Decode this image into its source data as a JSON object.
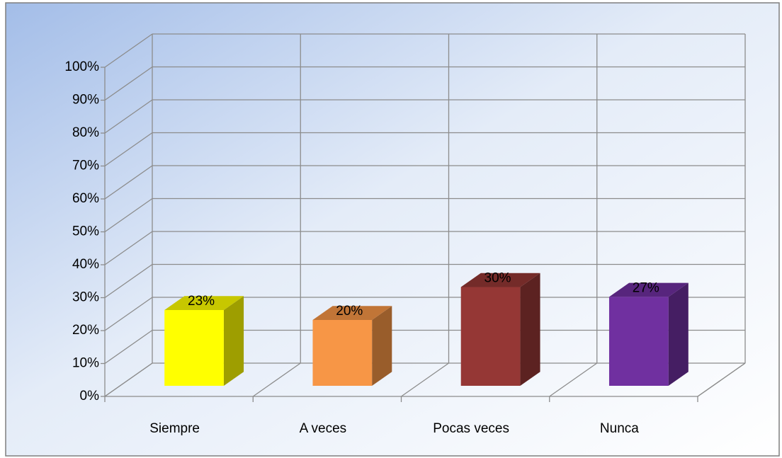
{
  "chart_data": {
    "type": "bar3d",
    "categories": [
      "Siempre",
      "A veces",
      "Pocas veces",
      "Nunca"
    ],
    "values": [
      23,
      20,
      30,
      27
    ],
    "value_labels": [
      "23%",
      "20%",
      "30%",
      "27%"
    ],
    "colors": [
      "#ffff00",
      "#f79646",
      "#953735",
      "#7030a0"
    ],
    "ylim": [
      0,
      100
    ],
    "yticks": [
      {
        "value": 0,
        "label": "0%"
      },
      {
        "value": 10,
        "label": "10%"
      },
      {
        "value": 20,
        "label": "20%"
      },
      {
        "value": 30,
        "label": "30%"
      },
      {
        "value": 40,
        "label": "40%"
      },
      {
        "value": 50,
        "label": "50%"
      },
      {
        "value": 60,
        "label": "60%"
      },
      {
        "value": 70,
        "label": "70%"
      },
      {
        "value": 80,
        "label": "80%"
      },
      {
        "value": 90,
        "label": "90%"
      },
      {
        "value": 100,
        "label": "100%"
      }
    ],
    "grid": true
  }
}
